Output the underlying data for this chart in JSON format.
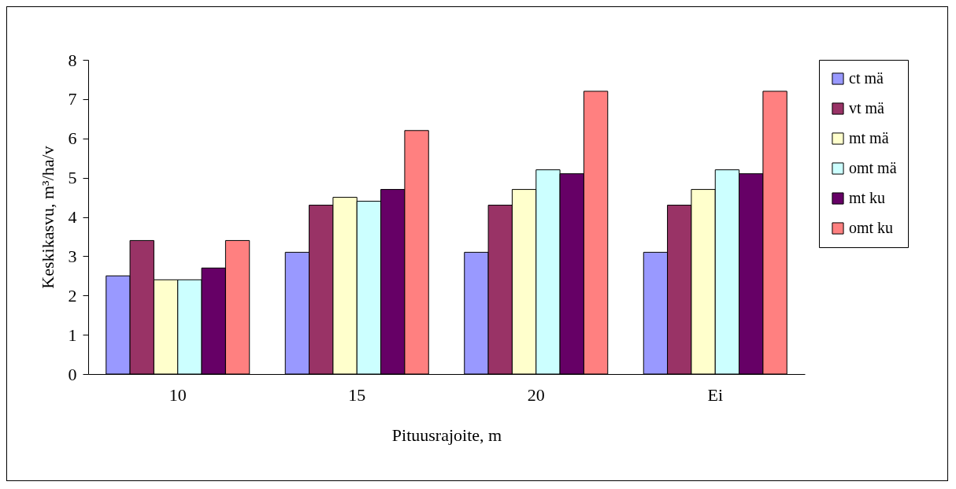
{
  "chart_data": {
    "type": "bar",
    "xlabel": "Pituusrajoite, m",
    "ylabel": "Keskikasvu, m³/ha/v",
    "categories": [
      "10",
      "15",
      "20",
      "Ei"
    ],
    "series": [
      {
        "name": "ct mä",
        "color": "#9999ff",
        "values": [
          2.5,
          3.1,
          3.1,
          3.1
        ]
      },
      {
        "name": "vt mä",
        "color": "#993366",
        "values": [
          3.4,
          4.3,
          4.3,
          4.3
        ]
      },
      {
        "name": "mt mä",
        "color": "#ffffcc",
        "values": [
          2.4,
          4.5,
          4.7,
          4.7
        ]
      },
      {
        "name": "omt mä",
        "color": "#ccffff",
        "values": [
          2.4,
          4.4,
          5.2,
          5.2
        ]
      },
      {
        "name": "mt ku",
        "color": "#660066",
        "values": [
          2.7,
          4.7,
          5.1,
          5.1
        ]
      },
      {
        "name": "omt ku",
        "color": "#ff8080",
        "values": [
          3.4,
          6.2,
          7.2,
          7.2
        ]
      }
    ],
    "ylim": [
      0,
      8
    ],
    "yticks": [
      0,
      1,
      2,
      3,
      4,
      5,
      6,
      7,
      8
    ],
    "grid": false,
    "legend": "right"
  }
}
